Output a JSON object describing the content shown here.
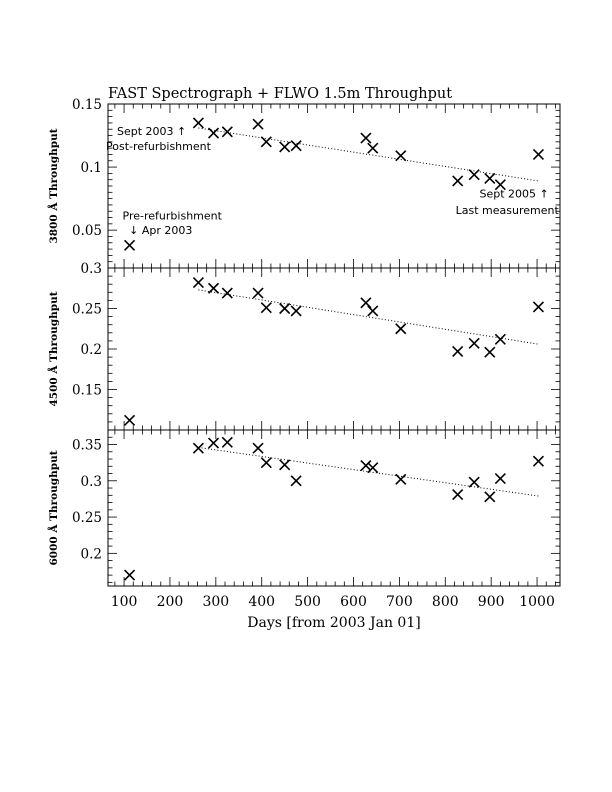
{
  "chart_data": {
    "type": "scatter",
    "title": "FAST Spectrograph + FLWO 1.5m Throughput",
    "xlabel": "Days [from 2003 Jan 01]",
    "xlim": [
      65,
      1050
    ],
    "xticks": [
      100,
      200,
      300,
      400,
      500,
      600,
      700,
      800,
      900,
      1000
    ],
    "x": [
      112,
      262,
      295,
      325,
      392,
      410,
      450,
      475,
      627,
      642,
      703,
      827,
      863,
      897,
      920,
      1003
    ],
    "panels": [
      {
        "ylabel": "3800 Å Throughput",
        "ylim": [
          0.02,
          0.15
        ],
        "yticks": [
          0.05,
          0.1,
          0.15
        ],
        "ytick_labels": [
          "0.05",
          "0.1",
          "0.15"
        ],
        "values": [
          0.038,
          0.135,
          0.127,
          0.128,
          0.134,
          0.12,
          0.116,
          0.117,
          0.123,
          0.115,
          0.109,
          0.089,
          0.094,
          0.091,
          0.086,
          0.11
        ],
        "trend": {
          "x": [
            262,
            1003
          ],
          "y": [
            0.131,
            0.089
          ]
        },
        "annotations": [
          {
            "text": "Sept 2003 ↑",
            "x": 160,
            "y": 0.1255
          },
          {
            "text": "Post-refurbishment",
            "x": 175,
            "y": 0.1135
          },
          {
            "text": "Pre-refurbishment",
            "x": 205,
            "y": 0.0585
          },
          {
            "text": "↓ Apr 2003",
            "x": 180,
            "y": 0.047
          },
          {
            "text": "Sept 2005 ↑",
            "x": 950,
            "y": 0.076
          },
          {
            "text": "Last measurement",
            "x": 935,
            "y": 0.063
          }
        ]
      },
      {
        "ylabel": "4500 Å Throughput",
        "ylim": [
          0.1,
          0.3
        ],
        "yticks": [
          0.15,
          0.2,
          0.25,
          0.3
        ],
        "ytick_labels": [
          "0.15",
          "0.2",
          "0.25",
          "0.3"
        ],
        "values": [
          0.112,
          0.282,
          0.275,
          0.269,
          0.269,
          0.251,
          0.25,
          0.247,
          0.257,
          0.247,
          0.225,
          0.197,
          0.207,
          0.196,
          0.212,
          0.252
        ],
        "trend": {
          "x": [
            262,
            1003
          ],
          "y": [
            0.273,
            0.206
          ]
        }
      },
      {
        "ylabel": "6000 Å Throughput",
        "ylim": [
          0.155,
          0.37
        ],
        "yticks": [
          0.2,
          0.25,
          0.3,
          0.35
        ],
        "ytick_labels": [
          "0.2",
          "0.25",
          "0.3",
          "0.35"
        ],
        "values": [
          0.17,
          0.345,
          0.352,
          0.353,
          0.345,
          0.325,
          0.322,
          0.3,
          0.321,
          0.318,
          0.302,
          0.281,
          0.298,
          0.278,
          0.303,
          0.327
        ],
        "trend": {
          "x": [
            262,
            1003
          ],
          "y": [
            0.346,
            0.279
          ]
        }
      }
    ]
  }
}
